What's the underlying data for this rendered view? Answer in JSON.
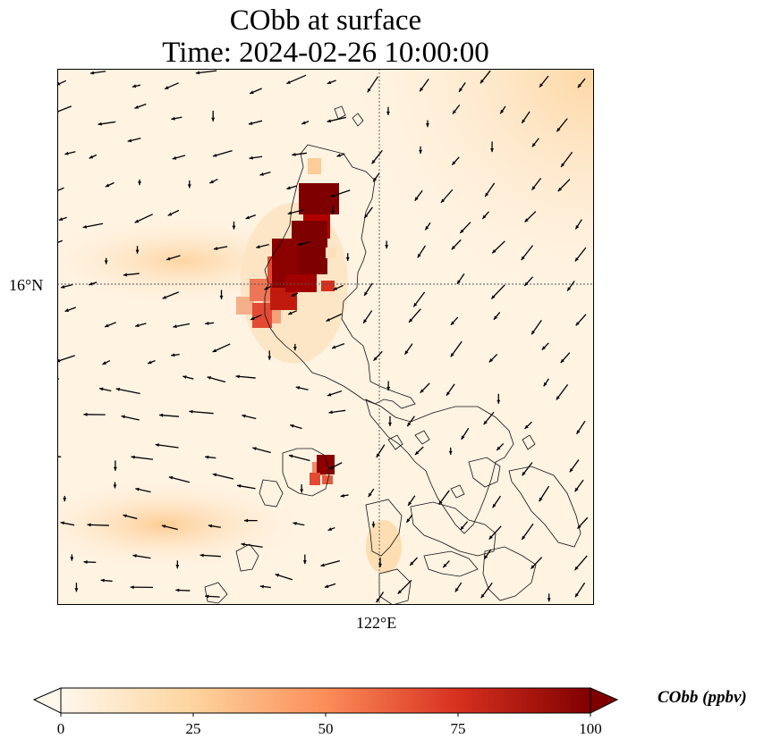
{
  "title_line1": "CObb at surface",
  "title_line2": "Time: 2024-02-26 10:00:00",
  "lat_tick": "16°N",
  "lon_tick": "122°E",
  "colorbar": {
    "label": "CObb (ppbv)",
    "ticks": [
      "0",
      "25",
      "50",
      "75",
      "100"
    ],
    "min": 0,
    "max": 100,
    "colors": [
      "#fff7ec",
      "#fdd49e",
      "#fc8d59",
      "#d7301f",
      "#7f0000"
    ]
  }
}
